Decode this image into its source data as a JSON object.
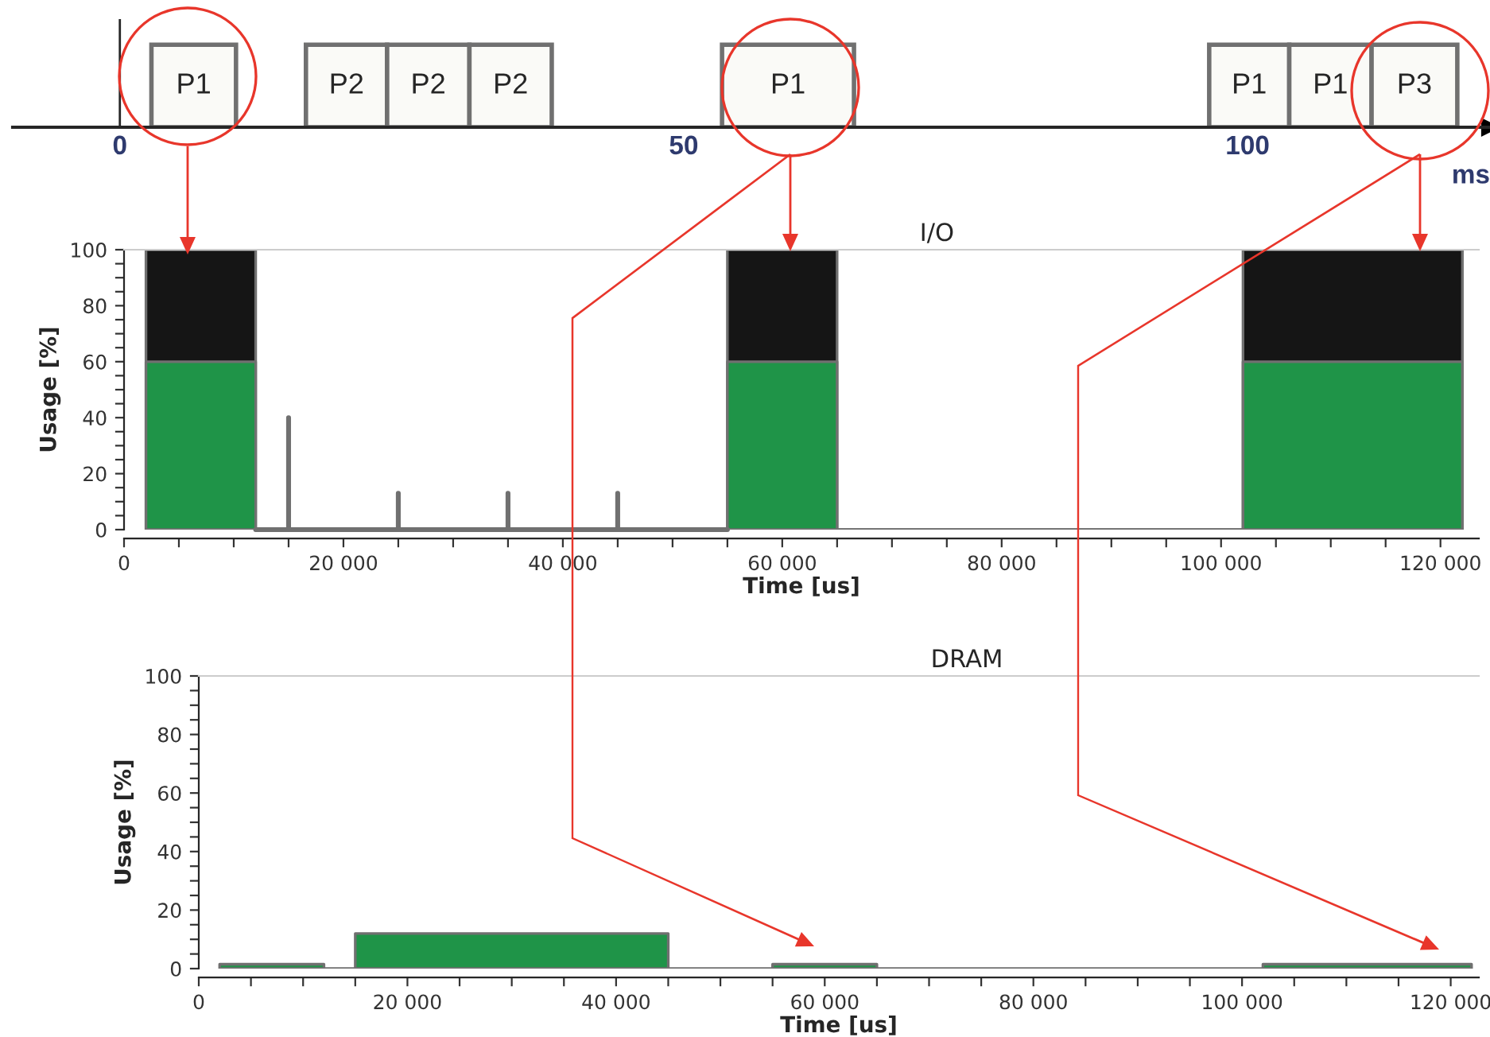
{
  "chart_data": [
    {
      "type": "bar",
      "orientation": "horizontal",
      "categories": [
        null
      ],
      "xlim": [
        -9.5,
        121.5
      ],
      "xticks": [
        0,
        50,
        100
      ],
      "xlabel": "ms",
      "tick_labels": "x",
      "ref_lines": [
        {
          "axis": "x",
          "value": 0,
          "color": "#262626"
        }
      ],
      "series": [
        {
          "color": "#fafaf7",
          "base": [
            2.8
          ],
          "values": [
            7.5
          ],
          "value_labels": [
            "P1"
          ]
        },
        {
          "color": "#fafaf7",
          "base": [
            16.5
          ],
          "values": [
            7.2
          ],
          "value_labels": [
            "P2"
          ]
        },
        {
          "color": "#fafaf7",
          "base": [
            23.7
          ],
          "values": [
            7.3
          ],
          "value_labels": [
            "P2"
          ]
        },
        {
          "color": "#fafaf7",
          "base": [
            31.0
          ],
          "values": [
            7.3
          ],
          "value_labels": [
            "P2"
          ]
        },
        {
          "color": "#fafaf7",
          "base": [
            53.4
          ],
          "values": [
            11.7
          ],
          "value_labels": [
            "P1"
          ]
        },
        {
          "color": "#fafaf7",
          "base": [
            96.6
          ],
          "values": [
            7.1
          ],
          "value_labels": [
            "P1"
          ]
        },
        {
          "color": "#fafaf7",
          "base": [
            103.7
          ],
          "values": [
            7.3
          ],
          "value_labels": [
            "P1"
          ]
        },
        {
          "color": "#fafaf7",
          "base": [
            111.0
          ],
          "values": [
            7.6
          ],
          "value_labels": [
            "P3"
          ]
        }
      ]
    },
    {
      "type": "area",
      "title": "I/O",
      "xlabel": "Time [us]",
      "ylabel": "Usage [%]",
      "xlim": [
        0,
        123500
      ],
      "ylim": [
        0,
        100
      ],
      "xticks": [
        0,
        {
          "value": 5000,
          "label": null
        },
        {
          "value": 10000,
          "label": null
        },
        {
          "value": 15000,
          "label": null
        },
        {
          "value": 20000,
          "label": "20 000"
        },
        {
          "value": 25000,
          "label": null
        },
        {
          "value": 30000,
          "label": null
        },
        {
          "value": 35000,
          "label": null
        },
        {
          "value": 40000,
          "label": "40 000"
        },
        {
          "value": 45000,
          "label": null
        },
        {
          "value": 50000,
          "label": null
        },
        {
          "value": 55000,
          "label": null
        },
        {
          "value": 60000,
          "label": "60 000"
        },
        {
          "value": 65000,
          "label": null
        },
        {
          "value": 70000,
          "label": null
        },
        {
          "value": 75000,
          "label": null
        },
        {
          "value": 80000,
          "label": "80 000"
        },
        {
          "value": 85000,
          "label": null
        },
        {
          "value": 90000,
          "label": null
        },
        {
          "value": 95000,
          "label": null
        },
        {
          "value": 100000,
          "label": "100 000"
        },
        {
          "value": 105000,
          "label": null
        },
        {
          "value": 110000,
          "label": null
        },
        {
          "value": 115000,
          "label": null
        },
        {
          "value": 120000,
          "label": "120 000"
        }
      ],
      "yticks": [
        0,
        {
          "value": 5,
          "label": null
        },
        {
          "value": 10,
          "label": null
        },
        {
          "value": 15,
          "label": null
        },
        20,
        {
          "value": 25,
          "label": null
        },
        {
          "value": 30,
          "label": null
        },
        {
          "value": 35,
          "label": null
        },
        40,
        {
          "value": 45,
          "label": null
        },
        {
          "value": 50,
          "label": null
        },
        {
          "value": 55,
          "label": null
        },
        60,
        {
          "value": 65,
          "label": null
        },
        {
          "value": 70,
          "label": null
        },
        {
          "value": 75,
          "label": null
        },
        80,
        {
          "value": 85,
          "label": null
        },
        {
          "value": 90,
          "label": null
        },
        {
          "value": 95,
          "label": null
        },
        100
      ],
      "series": [
        {
          "type": "area",
          "color": "#151515",
          "x": [
            2000,
            2000,
            12000,
            12000,
            55000,
            55000,
            65000,
            65000,
            102000,
            102000,
            122000,
            122000
          ],
          "values": [
            0,
            100,
            100,
            0,
            0,
            100,
            100,
            0,
            0,
            100,
            100,
            0
          ]
        },
        {
          "type": "area",
          "color": "#1f9448",
          "x": [
            2000,
            2000,
            12000,
            12000,
            55000,
            55000,
            65000,
            65000,
            102000,
            102000,
            122000,
            122000
          ],
          "values": [
            0,
            60,
            60,
            0,
            0,
            60,
            60,
            0,
            0,
            60,
            60,
            0
          ]
        },
        {
          "type": "line",
          "color": "#707070",
          "x": [
            12000,
            15000,
            15000,
            15000,
            25000,
            25000,
            25000,
            35000,
            35000,
            35000,
            45000,
            45000,
            45000,
            55000
          ],
          "values": [
            0,
            0,
            40,
            0,
            0,
            13,
            0,
            0,
            13,
            0,
            0,
            13,
            0,
            0
          ]
        }
      ]
    },
    {
      "type": "area",
      "title": "DRAM",
      "xlabel": "Time [us]",
      "ylabel": "Usage [%]",
      "xlim": [
        0,
        122700
      ],
      "ylim": [
        0,
        100
      ],
      "xticks": [
        0,
        {
          "value": 5000,
          "label": null
        },
        {
          "value": 10000,
          "label": null
        },
        {
          "value": 15000,
          "label": null
        },
        {
          "value": 20000,
          "label": "20 000"
        },
        {
          "value": 25000,
          "label": null
        },
        {
          "value": 30000,
          "label": null
        },
        {
          "value": 35000,
          "label": null
        },
        {
          "value": 40000,
          "label": "40 000"
        },
        {
          "value": 45000,
          "label": null
        },
        {
          "value": 50000,
          "label": null
        },
        {
          "value": 55000,
          "label": null
        },
        {
          "value": 60000,
          "label": "60 000"
        },
        {
          "value": 65000,
          "label": null
        },
        {
          "value": 70000,
          "label": null
        },
        {
          "value": 75000,
          "label": null
        },
        {
          "value": 80000,
          "label": "80 000"
        },
        {
          "value": 85000,
          "label": null
        },
        {
          "value": 90000,
          "label": null
        },
        {
          "value": 95000,
          "label": null
        },
        {
          "value": 100000,
          "label": "100 000"
        },
        {
          "value": 105000,
          "label": null
        },
        {
          "value": 110000,
          "label": null
        },
        {
          "value": 115000,
          "label": null
        },
        {
          "value": 120000,
          "label": "120 000"
        }
      ],
      "yticks": [
        0,
        {
          "value": 5,
          "label": null
        },
        {
          "value": 10,
          "label": null
        },
        {
          "value": 15,
          "label": null
        },
        20,
        {
          "value": 25,
          "label": null
        },
        {
          "value": 30,
          "label": null
        },
        {
          "value": 35,
          "label": null
        },
        40,
        {
          "value": 45,
          "label": null
        },
        {
          "value": 50,
          "label": null
        },
        {
          "value": 55,
          "label": null
        },
        60,
        {
          "value": 65,
          "label": null
        },
        {
          "value": 70,
          "label": null
        },
        {
          "value": 75,
          "label": null
        },
        80,
        {
          "value": 85,
          "label": null
        },
        {
          "value": 90,
          "label": null
        },
        {
          "value": 95,
          "label": null
        },
        100
      ],
      "series": [
        {
          "type": "area",
          "color": "#1f9448",
          "x": [
            2000,
            2000,
            12000,
            12000,
            15000,
            15000,
            45000,
            45000,
            55000,
            55000,
            65000,
            65000,
            102000,
            102000,
            122000,
            122000
          ],
          "values": [
            0,
            1.5,
            1.5,
            0,
            0,
            12,
            12,
            0,
            0,
            1.5,
            1.5,
            0,
            0,
            1.5,
            1.5,
            0
          ]
        }
      ]
    }
  ]
}
